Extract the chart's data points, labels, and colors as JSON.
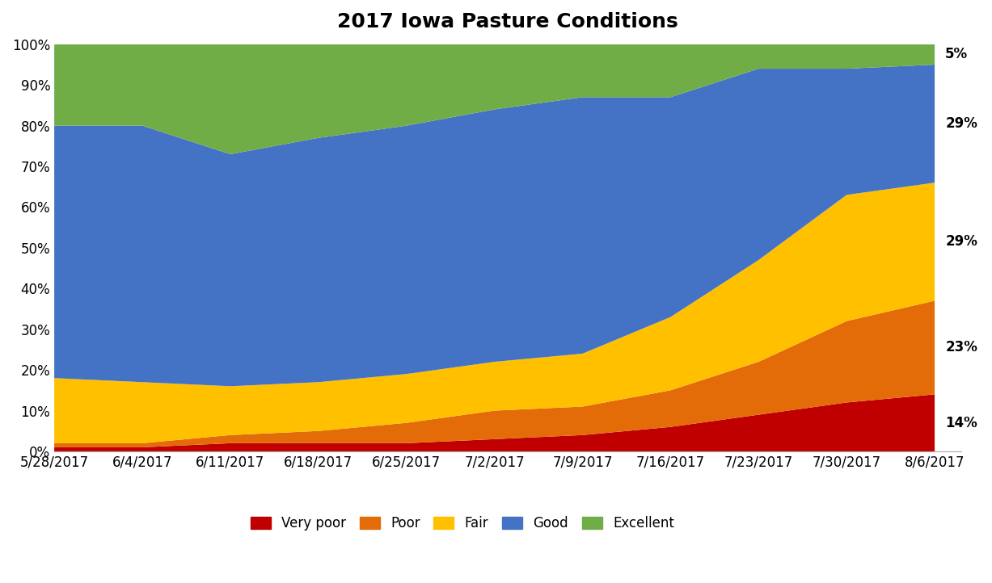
{
  "title": "2017 Iowa Pasture Conditions",
  "dates": [
    "5/28/2017",
    "6/4/2017",
    "6/11/2017",
    "6/18/2017",
    "6/25/2017",
    "7/2/2017",
    "7/9/2017",
    "7/16/2017",
    "7/23/2017",
    "7/30/2017",
    "8/6/2017"
  ],
  "very_poor": [
    1,
    1,
    2,
    2,
    2,
    3,
    4,
    6,
    9,
    12,
    14
  ],
  "poor": [
    1,
    1,
    2,
    3,
    5,
    7,
    7,
    9,
    13,
    20,
    23
  ],
  "fair": [
    16,
    15,
    12,
    12,
    12,
    12,
    13,
    18,
    25,
    31,
    29
  ],
  "good": [
    62,
    63,
    57,
    60,
    61,
    62,
    63,
    54,
    47,
    31,
    29
  ],
  "excellent": [
    20,
    20,
    27,
    23,
    20,
    16,
    13,
    13,
    6,
    6,
    5
  ],
  "colors": {
    "very_poor": "#C00000",
    "poor": "#E36C09",
    "fair": "#FFC000",
    "good": "#4472C4",
    "excellent": "#70AD47"
  },
  "labels": {
    "very_poor": "Very poor",
    "poor": "Poor",
    "fair": "Fair",
    "good": "Good",
    "excellent": "Excellent"
  },
  "end_labels": {
    "very_poor": "14%",
    "poor": "23%",
    "fair": "29%",
    "good": "29%",
    "excellent": "5%"
  },
  "ylim": [
    0,
    100
  ],
  "yticks": [
    0,
    10,
    20,
    30,
    40,
    50,
    60,
    70,
    80,
    90,
    100
  ],
  "ytick_labels": [
    "0%",
    "10%",
    "20%",
    "30%",
    "40%",
    "50%",
    "60%",
    "70%",
    "80%",
    "90%",
    "100%"
  ],
  "title_fontsize": 18,
  "tick_fontsize": 12,
  "label_fontsize": 12,
  "background_color": "#FFFFFF"
}
